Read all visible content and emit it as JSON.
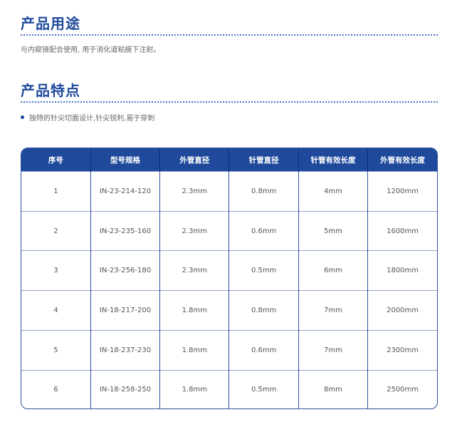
{
  "usage": {
    "title": "产品用途",
    "text": "与内窥镜配合使用, 用于消化道粘膜下注射。"
  },
  "features": {
    "title": "产品特点",
    "items": [
      "独特的针尖切面设计,针尖锐利,易于穿刺"
    ]
  },
  "table": {
    "headers": [
      "序号",
      "型号规格",
      "外管直径",
      "针管直径",
      "针管有效长度",
      "外管有效长度"
    ],
    "rows": [
      [
        "1",
        "IN-23-214-120",
        "2.3mm",
        "0.8mm",
        "4mm",
        "1200mm"
      ],
      [
        "2",
        "IN-23-235-160",
        "2.3mm",
        "0.6mm",
        "5mm",
        "1600mm"
      ],
      [
        "3",
        "IN-23-256-180",
        "2.3mm",
        "0.5mm",
        "6mm",
        "1800mm"
      ],
      [
        "4",
        "IN-18-217-200",
        "1.8mm",
        "0.8mm",
        "7mm",
        "2000mm"
      ],
      [
        "5",
        "IN-18-237-230",
        "1.8mm",
        "0.6mm",
        "7mm",
        "2300mm"
      ],
      [
        "6",
        "IN-18-258-250",
        "1.8mm",
        "0.5mm",
        "8mm",
        "2500mm"
      ]
    ]
  },
  "colors": {
    "accent": "#1f4a9c"
  }
}
